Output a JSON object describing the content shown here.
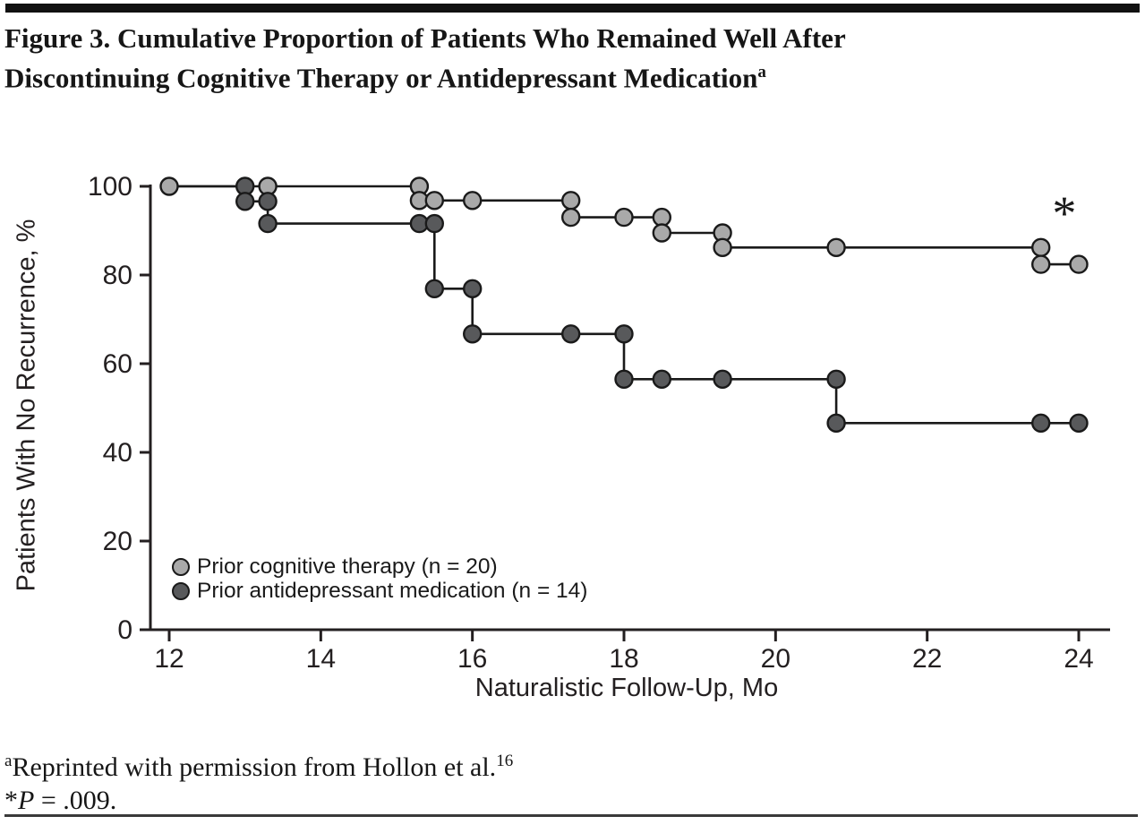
{
  "header": {
    "title_line1": "Figure 3. Cumulative Proportion of Patients Who Remained Well After",
    "title_line2": "Discontinuing Cognitive Therapy or Antidepressant Medication",
    "title_superscript": "a"
  },
  "chart_data": {
    "type": "line",
    "subtype": "kaplan-meier-step-survival",
    "xlabel": "Naturalistic Follow-Up, Mo",
    "ylabel": "Patients With No Recurrence, %",
    "xlim": [
      12,
      24
    ],
    "ylim": [
      0,
      100
    ],
    "xticks": [
      12,
      14,
      16,
      18,
      20,
      22,
      24
    ],
    "yticks": [
      0,
      20,
      40,
      60,
      80,
      100
    ],
    "grid": false,
    "legend_position": "lower-left-inside",
    "line_color": "#1a1a1a",
    "annotation": {
      "text": "*",
      "x": 23.81,
      "y": 95.2,
      "meaning": "P = .009"
    },
    "series": [
      {
        "name": "Prior cognitive therapy (n = 20)",
        "marker_fill": "#a9a9a9",
        "points": [
          [
            12.0,
            100,
            1
          ],
          [
            13.3,
            100,
            1
          ],
          [
            15.3,
            100,
            1
          ],
          [
            15.3,
            96.8,
            1
          ],
          [
            15.5,
            96.8,
            1
          ],
          [
            16.0,
            96.8,
            1
          ],
          [
            17.3,
            96.8,
            1
          ],
          [
            17.3,
            93.0,
            1
          ],
          [
            18.0,
            93.0,
            1
          ],
          [
            18.5,
            93.0,
            1
          ],
          [
            18.5,
            89.5,
            1
          ],
          [
            19.3,
            89.5,
            1
          ],
          [
            19.3,
            86.2,
            1
          ],
          [
            20.8,
            86.2,
            1
          ],
          [
            23.5,
            86.2,
            1
          ],
          [
            23.5,
            82.4,
            1
          ],
          [
            24.0,
            82.4,
            1
          ]
        ]
      },
      {
        "name": "Prior antidepressant medication (n = 14)",
        "marker_fill": "#58595b",
        "points": [
          [
            12.0,
            100,
            0
          ],
          [
            13.0,
            100,
            1
          ],
          [
            13.0,
            96.6,
            1
          ],
          [
            13.3,
            96.6,
            1
          ],
          [
            13.3,
            91.6,
            1
          ],
          [
            15.3,
            91.6,
            1
          ],
          [
            15.5,
            91.6,
            1
          ],
          [
            15.5,
            76.9,
            1
          ],
          [
            16.0,
            76.9,
            1
          ],
          [
            16.0,
            66.7,
            1
          ],
          [
            17.3,
            66.7,
            1
          ],
          [
            18.0,
            66.7,
            1
          ],
          [
            18.0,
            56.5,
            1
          ],
          [
            18.5,
            56.5,
            1
          ],
          [
            19.3,
            56.5,
            1
          ],
          [
            20.8,
            56.5,
            1
          ],
          [
            20.8,
            46.6,
            1
          ],
          [
            23.5,
            46.6,
            1
          ],
          [
            24.0,
            46.6,
            1
          ]
        ]
      }
    ]
  },
  "legend": {
    "items": [
      {
        "label": "Prior cognitive therapy (n = 20)",
        "color": "#a9a9a9"
      },
      {
        "label": "Prior antidepressant medication (n = 14)",
        "color": "#58595b"
      }
    ]
  },
  "footnotes": {
    "note_a_sup": "a",
    "note_a_text": "Reprinted with permission from Hollon et al.",
    "note_a_ref_sup": "16",
    "note_p_star": "*",
    "note_p_var": "P",
    "note_p_rest": " = .009."
  }
}
